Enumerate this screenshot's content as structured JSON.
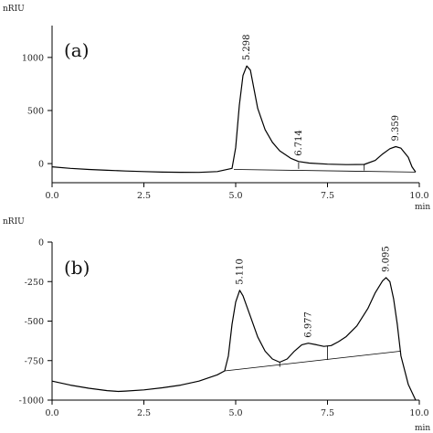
{
  "chart_data": [
    {
      "type": "line",
      "panel_label": "(a)",
      "ylabel": "nRIU",
      "xlabel": "min",
      "xlim": [
        0,
        10
      ],
      "ylim": [
        -180,
        1300
      ],
      "x_ticks": [
        0.0,
        2.5,
        5.0,
        7.5,
        10.0
      ],
      "x_tick_labels": [
        "0.0",
        "2.5",
        "5.0",
        "7.5",
        "10.0"
      ],
      "y_ticks": [
        0,
        500,
        1000
      ],
      "y_tick_labels": [
        "0",
        "500",
        "1000"
      ],
      "grid": false,
      "series": [
        {
          "x": [
            0.0,
            0.5,
            1.0,
            1.5,
            2.0,
            2.5,
            3.0,
            3.5,
            4.0,
            4.5,
            4.9,
            5.0,
            5.1,
            5.2,
            5.3,
            5.4,
            5.5,
            5.6,
            5.8,
            6.0,
            6.2,
            6.5,
            6.714,
            7.0,
            7.5,
            8.0,
            8.5,
            8.8,
            9.0,
            9.2,
            9.359,
            9.5,
            9.7,
            9.8,
            9.9
          ],
          "y": [
            -30,
            -45,
            -55,
            -63,
            -70,
            -75,
            -80,
            -82,
            -83,
            -75,
            -45,
            150,
            550,
            830,
            920,
            880,
            700,
            520,
            320,
            200,
            120,
            50,
            20,
            5,
            -5,
            -10,
            -8,
            30,
            90,
            140,
            160,
            145,
            60,
            -30,
            -80
          ]
        }
      ],
      "baseline": {
        "x": [
          4.95,
          9.9
        ],
        "y": [
          -55,
          -80
        ]
      },
      "peak_labels": [
        {
          "text": "5.298",
          "x": 5.298,
          "y": 920
        },
        {
          "text": "6.714",
          "x": 6.714,
          "y": 20
        },
        {
          "text": "9.359",
          "x": 9.359,
          "y": 160
        }
      ],
      "markers": [
        {
          "x": 6.714,
          "y_top": 10,
          "y_bottom": -50
        },
        {
          "x": 8.5,
          "y_top": -5,
          "y_bottom": -65
        }
      ]
    },
    {
      "type": "line",
      "panel_label": "(b)",
      "ylabel": "nRIU",
      "xlabel": "min",
      "xlim": [
        0,
        10
      ],
      "ylim": [
        -1000,
        0
      ],
      "x_ticks": [
        0.0,
        2.5,
        5.0,
        7.5,
        10.0
      ],
      "x_tick_labels": [
        "0.0",
        "2.5",
        "5.0",
        "7.5",
        "10.0"
      ],
      "y_ticks": [
        -1000,
        -750,
        -500,
        -250,
        0
      ],
      "y_tick_labels": [
        "-1000",
        "-750",
        "-500",
        "-250",
        "0"
      ],
      "grid": false,
      "series": [
        {
          "x": [
            0.0,
            0.5,
            1.0,
            1.5,
            1.8,
            2.0,
            2.5,
            3.0,
            3.5,
            4.0,
            4.5,
            4.7,
            4.8,
            4.9,
            5.0,
            5.11,
            5.2,
            5.4,
            5.6,
            5.8,
            6.0,
            6.2,
            6.4,
            6.6,
            6.8,
            6.977,
            7.2,
            7.4,
            7.6,
            7.8,
            8.0,
            8.3,
            8.6,
            8.8,
            9.0,
            9.095,
            9.2,
            9.3,
            9.4,
            9.5,
            9.7,
            9.9
          ],
          "y": [
            -880,
            -905,
            -925,
            -940,
            -945,
            -943,
            -935,
            -922,
            -905,
            -880,
            -840,
            -815,
            -720,
            -520,
            -380,
            -305,
            -340,
            -470,
            -600,
            -690,
            -740,
            -760,
            -740,
            -690,
            -650,
            -640,
            -650,
            -660,
            -655,
            -630,
            -600,
            -530,
            -420,
            -320,
            -245,
            -225,
            -250,
            -360,
            -520,
            -720,
            -900,
            -1000
          ]
        }
      ],
      "baseline": {
        "x": [
          4.7,
          9.5
        ],
        "y": [
          -815,
          -690
        ]
      },
      "peak_labels": [
        {
          "text": "5.110",
          "x": 5.11,
          "y": -305
        },
        {
          "text": "6.977",
          "x": 6.977,
          "y": -640
        },
        {
          "text": "9.095",
          "x": 9.095,
          "y": -225
        }
      ],
      "markers": [
        {
          "x": 6.2,
          "y_top": -760,
          "y_bottom": -790
        },
        {
          "x": 7.5,
          "y_top": -655,
          "y_bottom": -745
        }
      ]
    }
  ]
}
